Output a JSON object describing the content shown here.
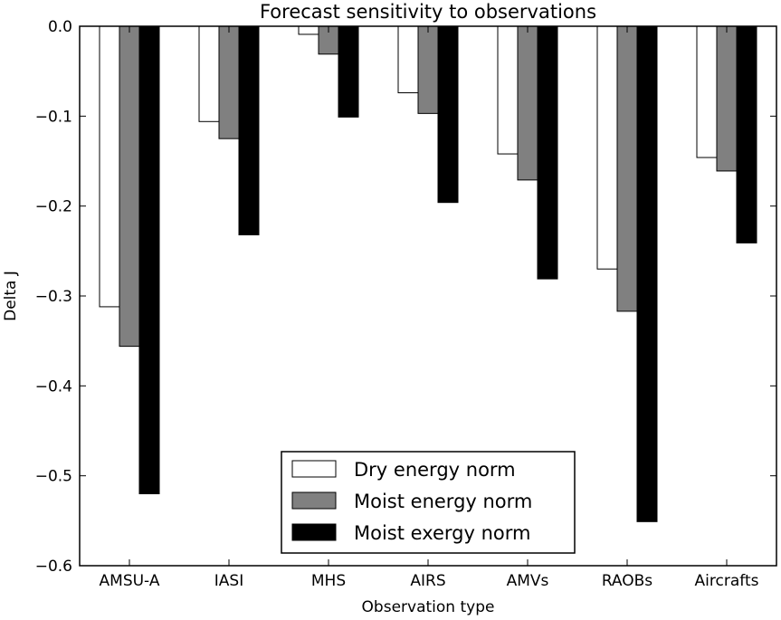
{
  "chart_data": {
    "type": "bar",
    "title": "Forecast sensitivity to observations",
    "xlabel": "Observation type",
    "ylabel": "Delta J",
    "categories": [
      "AMSU-A",
      "IASI",
      "MHS",
      "AIRS",
      "AMVs",
      "RAOBs",
      "Aircrafts"
    ],
    "series": [
      {
        "name": "Dry energy norm",
        "color": "#ffffff",
        "values": [
          -0.312,
          -0.106,
          -0.009,
          -0.074,
          -0.142,
          -0.27,
          -0.146
        ]
      },
      {
        "name": "Moist energy norm",
        "color": "#808080",
        "values": [
          -0.356,
          -0.125,
          -0.031,
          -0.097,
          -0.171,
          -0.317,
          -0.161
        ]
      },
      {
        "name": "Moist exergy norm",
        "color": "#000000",
        "values": [
          -0.52,
          -0.232,
          -0.101,
          -0.196,
          -0.281,
          -0.551,
          -0.241
        ]
      }
    ],
    "ylim": [
      -0.6,
      0.0
    ],
    "yticks": [
      0.0,
      -0.1,
      -0.2,
      -0.3,
      -0.4,
      -0.5,
      -0.6
    ],
    "ytick_labels": [
      "0.0",
      "−0.1",
      "−0.2",
      "−0.3",
      "−0.4",
      "−0.5",
      "−0.6"
    ],
    "legend_position": "lower-center",
    "grid": false
  }
}
